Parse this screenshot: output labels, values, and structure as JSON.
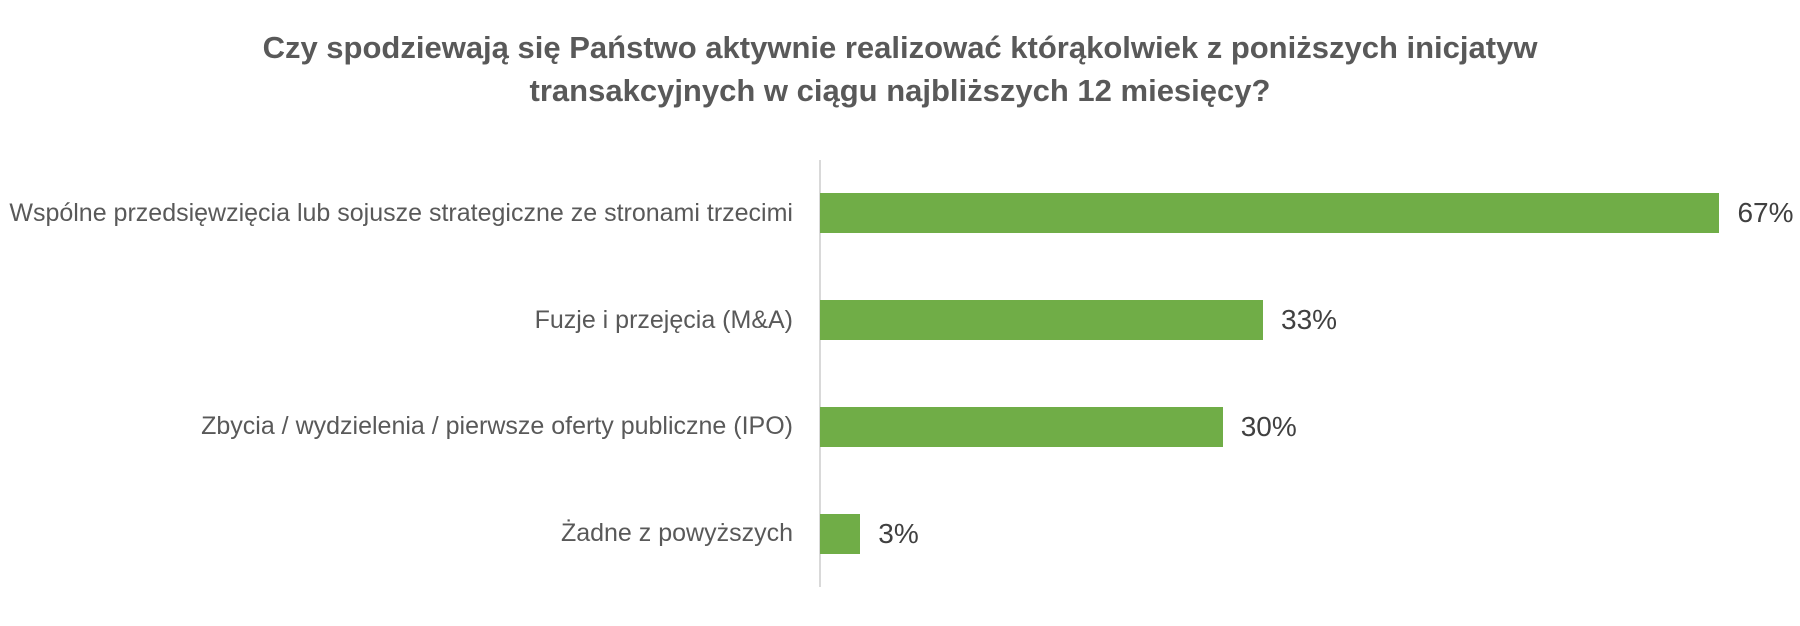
{
  "chart_data": {
    "type": "bar",
    "orientation": "horizontal",
    "title": "Czy spodziewają się Państwo aktywnie realizować którąkolwiek z poniższych inicjatyw transakcyjnych w ciągu najbliższych 12 miesięcy?",
    "title_lines": [
      "Czy spodziewają się Państwo aktywnie realizować którąkolwiek z poniższych inicjatyw",
      "transakcyjnych w ciągu najbliższych 12 miesięcy?"
    ],
    "categories": [
      "Wspólne przedsięwzięcia lub sojusze strategiczne ze stronami trzecimi",
      "Fuzje i przejęcia (M&A)",
      "Zbycia / wydzielenia / pierwsze oferty publiczne (IPO)",
      "Żadne z powyższych"
    ],
    "values": [
      67,
      33,
      30,
      3
    ],
    "value_labels": [
      "67%",
      "33%",
      "30%",
      "3%"
    ],
    "xlabel": "",
    "ylabel": "",
    "xlim": [
      0,
      73
    ],
    "grid": false,
    "legend": false,
    "data_labels": "outside-end",
    "colors": {
      "bar": "#70AD47",
      "axis_line": "#D9D9D9",
      "title_text": "#595959",
      "category_text": "#595959",
      "value_text": "#404040",
      "background": "#FFFFFF"
    }
  }
}
